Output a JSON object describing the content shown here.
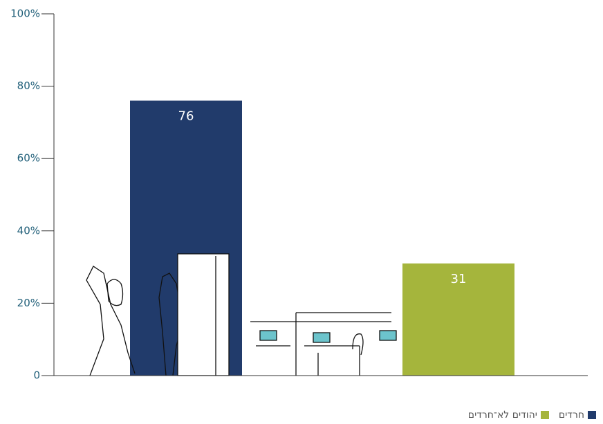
{
  "chart_data": {
    "type": "bar",
    "categories": [
      null,
      null
    ],
    "series": [
      {
        "name": "חרדים",
        "color": "#213b6b",
        "values": [
          76,
          null
        ]
      },
      {
        "name": "יהודים לא־חרדים",
        "color": "#a5b53c",
        "values": [
          null,
          31
        ]
      }
    ],
    "ylim": [
      0,
      100
    ],
    "yticks": [
      {
        "value": 0,
        "label": "0"
      },
      {
        "value": 20,
        "label": "20%"
      },
      {
        "value": 40,
        "label": "40%"
      },
      {
        "value": 60,
        "label": "60%"
      },
      {
        "value": 80,
        "label": "80%"
      },
      {
        "value": 100,
        "label": "100%"
      }
    ],
    "legend": "bottom-right"
  }
}
